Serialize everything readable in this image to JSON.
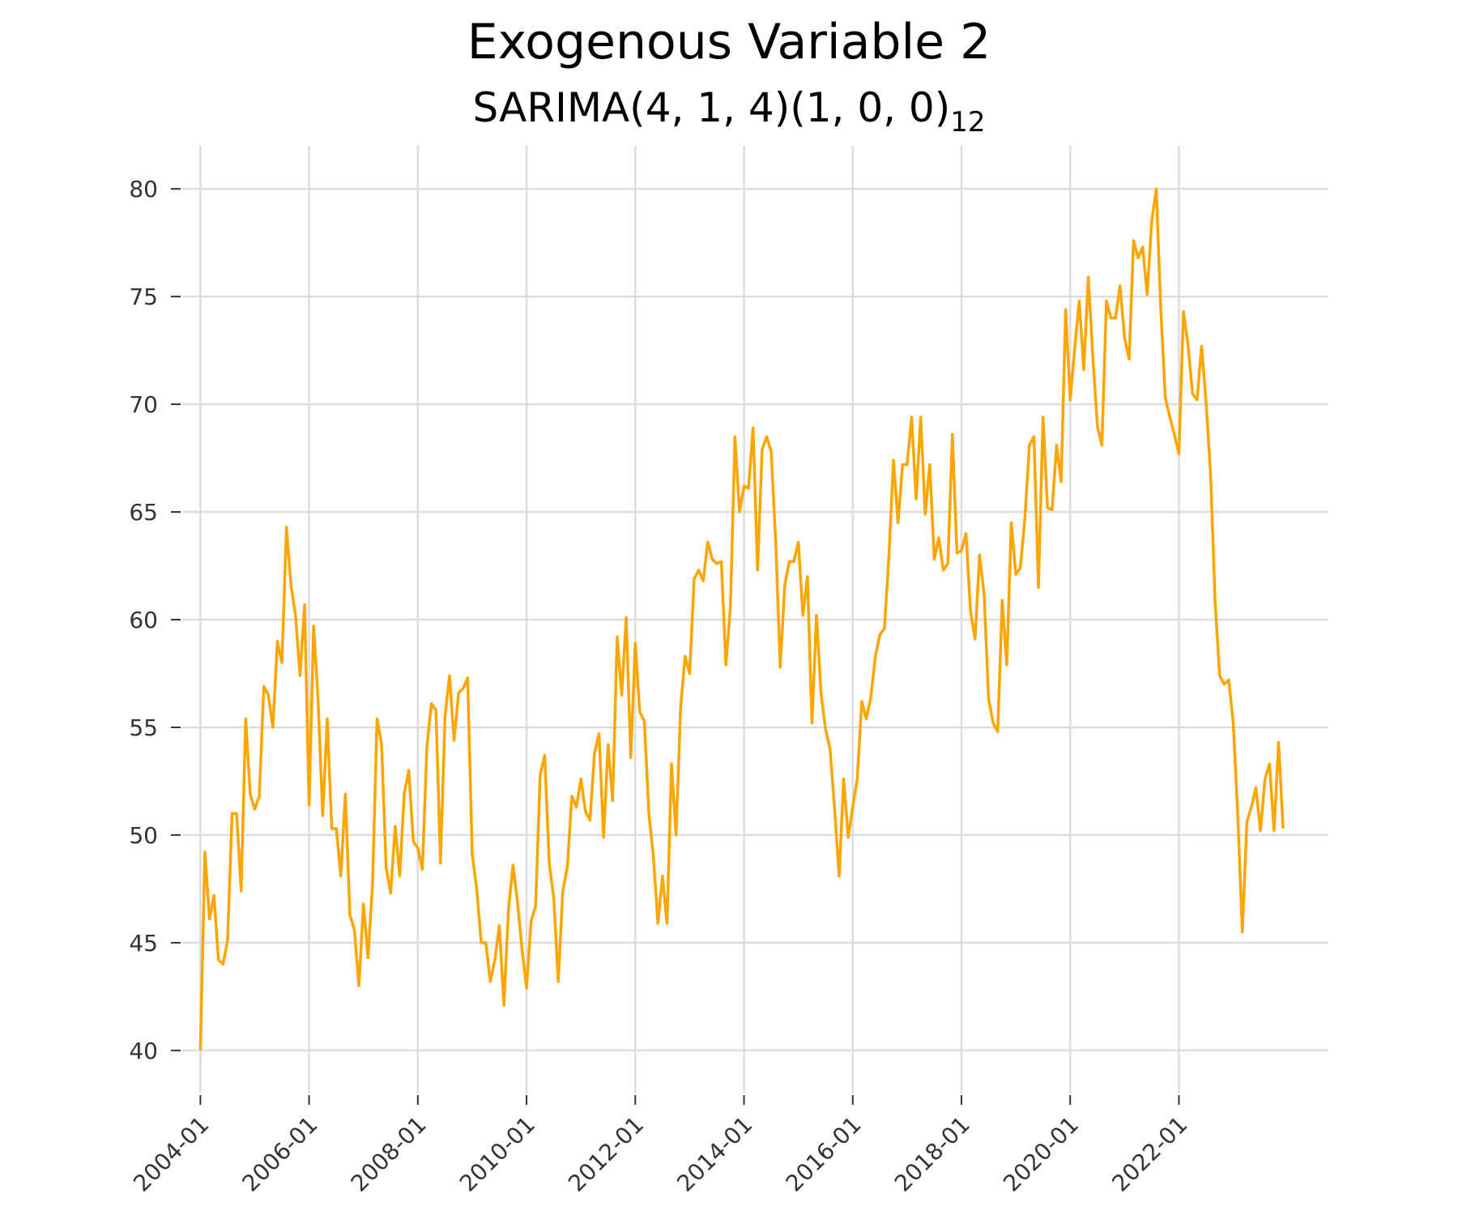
{
  "chart_data": {
    "type": "line",
    "title": "Exogenous Variable 2",
    "subtitle": {
      "text": "SARIMA(4, 1, 4)(1, 0, 0)",
      "subscript": "12"
    },
    "xlabel": "",
    "ylabel": "",
    "grid": true,
    "colors": {
      "line": "#FFA500",
      "grid": "#DDDDDD",
      "ticks": "#333333"
    },
    "x_tick_labels": [
      "2004-01",
      "2006-01",
      "2008-01",
      "2010-01",
      "2012-01",
      "2014-01",
      "2016-01",
      "2018-01",
      "2020-01",
      "2022-01"
    ],
    "y_ticks": [
      40,
      45,
      50,
      55,
      60,
      65,
      70,
      75,
      80
    ],
    "xlim": [
      "2003-09",
      "2024-10"
    ],
    "ylim": [
      38,
      82
    ],
    "series": [
      {
        "color": "#FFA500",
        "x": [
          "2004-01",
          "2004-02",
          "2004-03",
          "2004-04",
          "2004-05",
          "2004-06",
          "2004-07",
          "2004-08",
          "2004-09",
          "2004-10",
          "2004-11",
          "2004-12",
          "2005-01",
          "2005-02",
          "2005-03",
          "2005-04",
          "2005-05",
          "2005-06",
          "2005-07",
          "2005-08",
          "2005-09",
          "2005-10",
          "2005-11",
          "2005-12",
          "2006-01",
          "2006-02",
          "2006-03",
          "2006-04",
          "2006-05",
          "2006-06",
          "2006-07",
          "2006-08",
          "2006-09",
          "2006-10",
          "2006-11",
          "2006-12",
          "2007-01",
          "2007-02",
          "2007-03",
          "2007-04",
          "2007-05",
          "2007-06",
          "2007-07",
          "2007-08",
          "2007-09",
          "2007-10",
          "2007-11",
          "2007-12",
          "2008-01",
          "2008-02",
          "2008-03",
          "2008-04",
          "2008-05",
          "2008-06",
          "2008-07",
          "2008-08",
          "2008-09",
          "2008-10",
          "2008-11",
          "2008-12",
          "2009-01",
          "2009-02",
          "2009-03",
          "2009-04",
          "2009-05",
          "2009-06",
          "2009-07",
          "2009-08",
          "2009-09",
          "2009-10",
          "2009-11",
          "2009-12",
          "2010-01",
          "2010-02",
          "2010-03",
          "2010-04",
          "2010-05",
          "2010-06",
          "2010-07",
          "2010-08",
          "2010-09",
          "2010-10",
          "2010-11",
          "2010-12",
          "2011-01",
          "2011-02",
          "2011-03",
          "2011-04",
          "2011-05",
          "2011-06",
          "2011-07",
          "2011-08",
          "2011-09",
          "2011-10",
          "2011-11",
          "2011-12",
          "2012-01",
          "2012-02",
          "2012-03",
          "2012-04",
          "2012-05",
          "2012-06",
          "2012-07",
          "2012-08",
          "2012-09",
          "2012-10",
          "2012-11",
          "2012-12",
          "2013-01",
          "2013-02",
          "2013-03",
          "2013-04",
          "2013-05",
          "2013-06",
          "2013-07",
          "2013-08",
          "2013-09",
          "2013-10",
          "2013-11",
          "2013-12",
          "2014-01",
          "2014-02",
          "2014-03",
          "2014-04",
          "2014-05",
          "2014-06",
          "2014-07",
          "2014-08",
          "2014-09",
          "2014-10",
          "2014-11",
          "2014-12",
          "2015-01",
          "2015-02",
          "2015-03",
          "2015-04",
          "2015-05",
          "2015-06",
          "2015-07",
          "2015-08",
          "2015-09",
          "2015-10",
          "2015-11",
          "2015-12",
          "2016-01",
          "2016-02",
          "2016-03",
          "2016-04",
          "2016-05",
          "2016-06",
          "2016-07",
          "2016-08",
          "2016-09",
          "2016-10",
          "2016-11",
          "2016-12",
          "2017-01",
          "2017-02",
          "2017-03",
          "2017-04",
          "2017-05",
          "2017-06",
          "2017-07",
          "2017-08",
          "2017-09",
          "2017-10",
          "2017-11",
          "2017-12",
          "2018-01",
          "2018-02",
          "2018-03",
          "2018-04",
          "2018-05",
          "2018-06",
          "2018-07",
          "2018-08",
          "2018-09",
          "2018-10",
          "2018-11",
          "2018-12",
          "2019-01",
          "2019-02",
          "2019-03",
          "2019-04",
          "2019-05",
          "2019-06",
          "2019-07",
          "2019-08",
          "2019-09",
          "2019-10",
          "2019-11",
          "2019-12",
          "2020-01",
          "2020-02",
          "2020-03",
          "2020-04",
          "2020-05",
          "2020-06",
          "2020-07",
          "2020-08",
          "2020-09",
          "2020-10",
          "2020-11",
          "2020-12",
          "2021-01",
          "2021-02",
          "2021-03",
          "2021-04",
          "2021-05",
          "2021-06",
          "2021-07",
          "2021-08",
          "2021-09",
          "2021-10",
          "2021-11",
          "2021-12",
          "2022-01",
          "2022-02",
          "2022-03",
          "2022-04",
          "2022-05",
          "2022-06",
          "2022-07",
          "2022-08",
          "2022-09",
          "2022-10",
          "2022-11",
          "2022-12",
          "2023-01",
          "2023-02",
          "2023-03",
          "2023-04",
          "2023-05",
          "2023-06",
          "2023-07",
          "2023-08",
          "2023-09",
          "2023-10",
          "2023-11",
          "2023-12"
        ],
        "values": [
          40.0,
          49.2,
          46.1,
          47.2,
          44.2,
          44.0,
          45.1,
          51.0,
          51.0,
          47.4,
          55.4,
          51.9,
          51.2,
          51.8,
          56.9,
          56.5,
          55.0,
          59.0,
          58.0,
          64.3,
          61.6,
          60.2,
          57.4,
          60.7,
          51.4,
          59.7,
          56.2,
          50.9,
          55.4,
          50.3,
          50.3,
          48.1,
          51.9,
          46.3,
          45.6,
          43.0,
          46.8,
          44.3,
          47.7,
          55.4,
          54.2,
          48.5,
          47.3,
          50.4,
          48.1,
          51.9,
          53.0,
          49.7,
          49.4,
          48.4,
          54.1,
          56.1,
          55.8,
          48.7,
          55.5,
          57.4,
          54.4,
          56.6,
          56.8,
          57.3,
          49.1,
          47.5,
          45.0,
          45.0,
          43.2,
          44.2,
          45.8,
          42.1,
          46.5,
          48.6,
          46.9,
          44.7,
          42.9,
          46.0,
          46.7,
          52.8,
          53.7,
          48.7,
          47.1,
          43.2,
          47.4,
          48.5,
          51.8,
          51.3,
          52.6,
          51.1,
          50.7,
          53.8,
          54.7,
          49.9,
          54.2,
          51.6,
          59.2,
          56.5,
          60.1,
          53.6,
          58.9,
          55.7,
          55.3,
          51.0,
          49.0,
          45.9,
          48.1,
          45.9,
          53.3,
          50.0,
          55.9,
          58.3,
          57.5,
          61.9,
          62.3,
          61.8,
          63.6,
          62.8,
          62.6,
          62.7,
          57.9,
          60.6,
          68.5,
          65.0,
          66.2,
          66.1,
          68.9,
          62.3,
          67.9,
          68.5,
          67.8,
          63.6,
          57.8,
          61.6,
          62.7,
          62.7,
          63.6,
          60.2,
          62.0,
          55.2,
          60.2,
          56.6,
          54.9,
          54.0,
          51.2,
          48.1,
          52.6,
          49.9,
          51.3,
          52.6,
          56.2,
          55.4,
          56.4,
          58.3,
          59.3,
          59.6,
          63.0,
          67.4,
          64.5,
          67.2,
          67.2,
          69.4,
          65.6,
          69.4,
          64.9,
          67.2,
          62.8,
          63.8,
          62.3,
          62.6,
          68.6,
          63.1,
          63.2,
          64.0,
          60.4,
          59.1,
          63.0,
          61.2,
          56.3,
          55.2,
          54.8,
          60.9,
          57.9,
          64.5,
          62.1,
          62.4,
          64.7,
          68.1,
          68.5,
          61.5,
          69.4,
          65.2,
          65.1,
          68.1,
          66.4,
          74.4,
          70.2,
          72.6,
          74.8,
          71.6,
          75.9,
          72.2,
          69.0,
          68.1,
          74.8,
          74.0,
          74.0,
          75.5,
          73.1,
          72.1,
          77.6,
          76.8,
          77.3,
          75.1,
          78.5,
          80.0,
          74.4,
          70.3,
          69.4,
          68.6,
          67.7,
          74.3,
          72.8,
          70.5,
          70.2,
          72.7,
          70.1,
          66.7,
          60.8,
          57.4,
          57.0,
          57.2,
          55.2,
          50.9,
          45.5,
          50.6,
          51.3,
          52.2,
          50.2,
          52.6,
          53.3,
          50.2,
          54.3,
          50.3
        ]
      }
    ]
  }
}
